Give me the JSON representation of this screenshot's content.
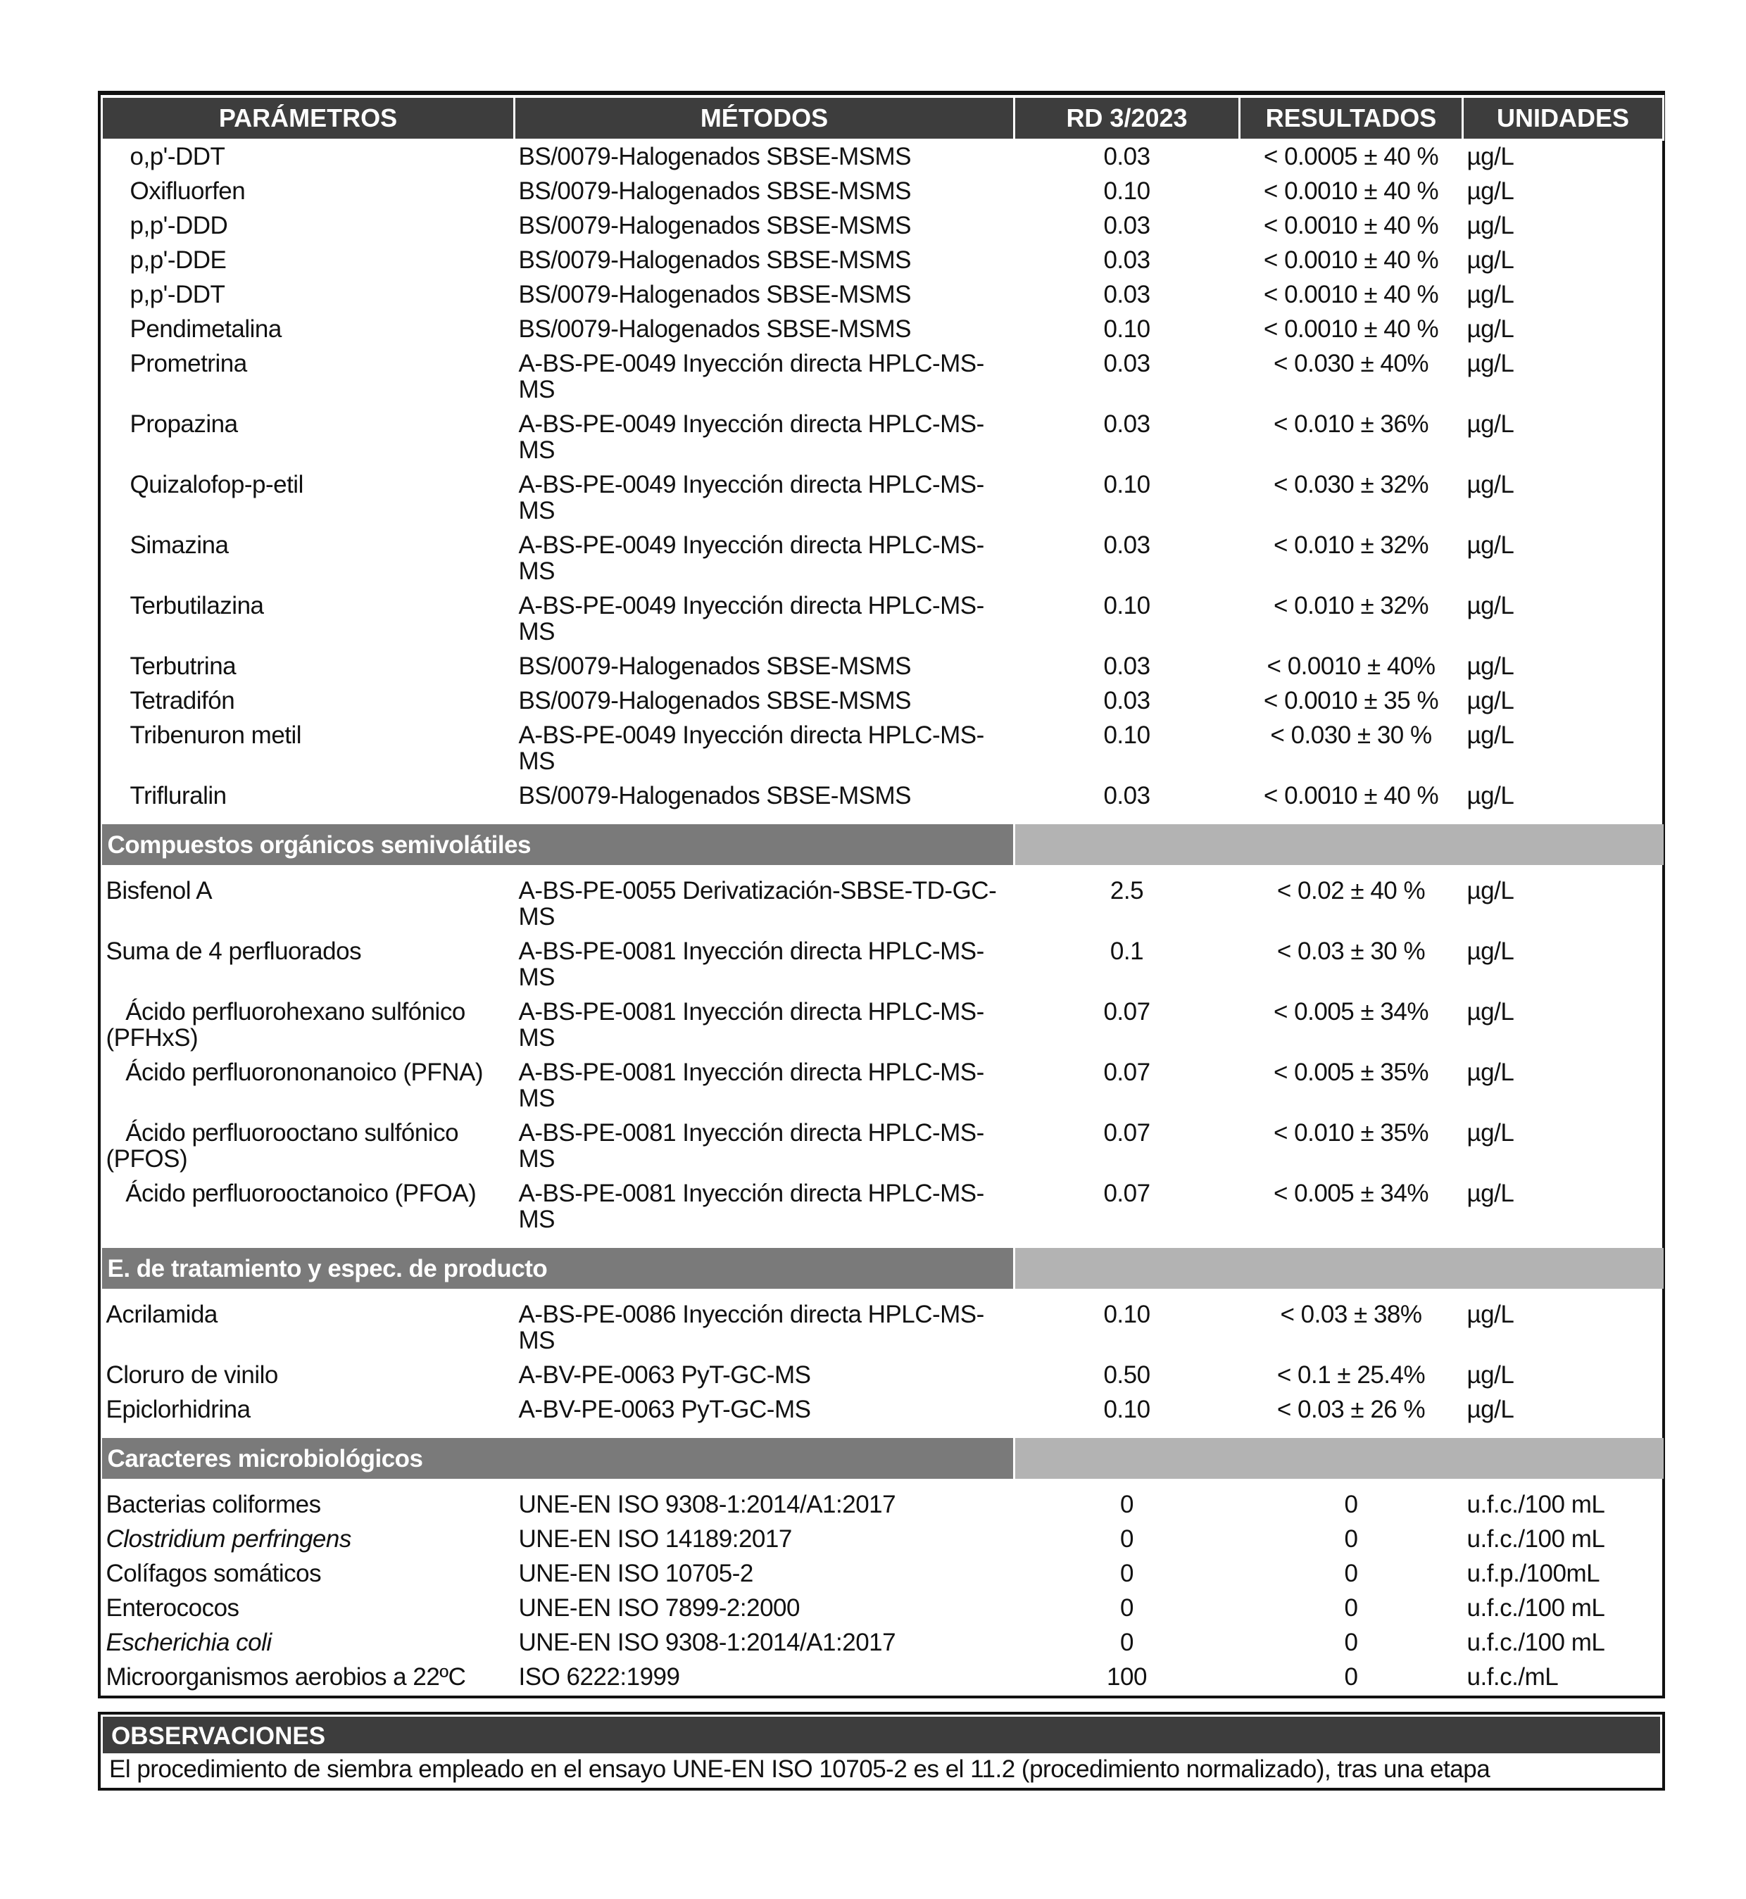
{
  "headers": [
    "PARÁMETROS",
    "MÉTODOS",
    "RD 3/2023",
    "RESULTADOS",
    "UNIDADES"
  ],
  "sections": [
    {
      "title": "",
      "rows": [
        {
          "param": "o,p'-DDT",
          "indent": true,
          "method": "BS/0079-Halogenados SBSE-MSMS",
          "rd": "0.03",
          "result": "< 0.0005 ± 40 %",
          "unit": "µg/L"
        },
        {
          "param": "Oxifluorfen",
          "indent": true,
          "method": "BS/0079-Halogenados SBSE-MSMS",
          "rd": "0.10",
          "result": "< 0.0010 ± 40 %",
          "unit": "µg/L"
        },
        {
          "param": "p,p'-DDD",
          "indent": true,
          "method": "BS/0079-Halogenados SBSE-MSMS",
          "rd": "0.03",
          "result": "< 0.0010 ± 40 %",
          "unit": "µg/L"
        },
        {
          "param": "p,p'-DDE",
          "indent": true,
          "method": "BS/0079-Halogenados SBSE-MSMS",
          "rd": "0.03",
          "result": "< 0.0010 ± 40 %",
          "unit": "µg/L"
        },
        {
          "param": "p,p'-DDT",
          "indent": true,
          "method": "BS/0079-Halogenados SBSE-MSMS",
          "rd": "0.03",
          "result": "< 0.0010 ± 40 %",
          "unit": "µg/L"
        },
        {
          "param": "Pendimetalina",
          "indent": true,
          "method": "BS/0079-Halogenados SBSE-MSMS",
          "rd": "0.10",
          "result": "< 0.0010 ± 40 %",
          "unit": "µg/L"
        },
        {
          "param": "Prometrina",
          "indent": true,
          "method": "A-BS-PE-0049 Inyección directa HPLC-MS-MS",
          "rd": "0.03",
          "result": "< 0.030 ± 40%",
          "unit": "µg/L"
        },
        {
          "param": "Propazina",
          "indent": true,
          "method": "A-BS-PE-0049 Inyección directa HPLC-MS-MS",
          "rd": "0.03",
          "result": "< 0.010 ± 36%",
          "unit": "µg/L"
        },
        {
          "param": "Quizalofop-p-etil",
          "indent": true,
          "method": "A-BS-PE-0049 Inyección directa HPLC-MS-MS",
          "rd": "0.10",
          "result": "< 0.030 ± 32%",
          "unit": "µg/L"
        },
        {
          "param": "Simazina",
          "indent": true,
          "method": "A-BS-PE-0049 Inyección directa HPLC-MS-MS",
          "rd": "0.03",
          "result": "< 0.010 ± 32%",
          "unit": "µg/L"
        },
        {
          "param": "Terbutilazina",
          "indent": true,
          "method": "A-BS-PE-0049 Inyección directa HPLC-MS-MS",
          "rd": "0.10",
          "result": "< 0.010 ± 32%",
          "unit": "µg/L"
        },
        {
          "param": "Terbutrina",
          "indent": true,
          "method": "BS/0079-Halogenados SBSE-MSMS",
          "rd": "0.03",
          "result": "< 0.0010 ± 40%",
          "unit": "µg/L"
        },
        {
          "param": "Tetradifón",
          "indent": true,
          "method": "BS/0079-Halogenados SBSE-MSMS",
          "rd": "0.03",
          "result": "< 0.0010 ± 35 %",
          "unit": "µg/L"
        },
        {
          "param": "Tribenuron metil",
          "indent": true,
          "method": "A-BS-PE-0049 Inyección directa HPLC-MS-MS",
          "rd": "0.10",
          "result": "< 0.030 ± 30 %",
          "unit": "µg/L"
        },
        {
          "param": "Trifluralin",
          "indent": true,
          "method": "BS/0079-Halogenados SBSE-MSMS",
          "rd": "0.03",
          "result": "< 0.0010 ± 40 %",
          "unit": "µg/L"
        }
      ]
    },
    {
      "title": "Compuestos orgánicos semivolátiles",
      "rows": [
        {
          "param": "Bisfenol A",
          "method": "A-BS-PE-0055 Derivatización-SBSE-TD-GC-MS",
          "rd": "2.5",
          "result": "< 0.02 ± 40 %",
          "unit": "µg/L"
        },
        {
          "param": "Suma de 4 perfluorados",
          "method": "A-BS-PE-0081 Inyección directa HPLC-MS-MS",
          "rd": "0.1",
          "result": "< 0.03 ± 30 %",
          "unit": "µg/L"
        },
        {
          "param": "   Ácido perfluorohexano sulfónico (PFHxS)",
          "method": "A-BS-PE-0081 Inyección directa HPLC-MS-MS",
          "rd": "0.07",
          "result": "< 0.005 ± 34%",
          "unit": "µg/L"
        },
        {
          "param": "   Ácido perfluorononanoico (PFNA)",
          "method": "A-BS-PE-0081 Inyección directa HPLC-MS-MS",
          "rd": "0.07",
          "result": "< 0.005 ± 35%",
          "unit": "µg/L"
        },
        {
          "param": "   Ácido perfluorooctano sulfónico (PFOS)",
          "method": "A-BS-PE-0081 Inyección directa HPLC-MS-MS",
          "rd": "0.07",
          "result": "< 0.010 ± 35%",
          "unit": "µg/L"
        },
        {
          "param": "   Ácido perfluorooctanoico (PFOA)",
          "method": "A-BS-PE-0081 Inyección directa HPLC-MS-MS",
          "rd": "0.07",
          "result": "< 0.005 ± 34%",
          "unit": "µg/L"
        }
      ]
    },
    {
      "title": "E. de tratamiento y espec. de producto",
      "rows": [
        {
          "param": "Acrilamida",
          "method": "A-BS-PE-0086 Inyección directa HPLC-MS-MS",
          "rd": "0.10",
          "result": "< 0.03 ± 38%",
          "unit": "µg/L"
        },
        {
          "param": "Cloruro de vinilo",
          "method": "A-BV-PE-0063 PyT-GC-MS",
          "rd": "0.50",
          "result": "< 0.1 ± 25.4%",
          "unit": "µg/L"
        },
        {
          "param": "Epiclorhidrina",
          "method": "A-BV-PE-0063 PyT-GC-MS",
          "rd": "0.10",
          "result": "< 0.03 ± 26 %",
          "unit": "µg/L"
        }
      ]
    },
    {
      "title": "Caracteres microbiológicos",
      "rows": [
        {
          "param": "Bacterias coliformes",
          "method": "UNE-EN ISO 9308-1:2014/A1:2017",
          "rd": "0",
          "result": "0",
          "unit": "u.f.c./100 mL"
        },
        {
          "param": "Clostridium perfringens",
          "italic": true,
          "method": "UNE-EN ISO 14189:2017",
          "rd": "0",
          "result": "0",
          "unit": "u.f.c./100 mL"
        },
        {
          "param": "Colífagos somáticos",
          "method": "UNE-EN ISO 10705-2",
          "rd": "0",
          "result": "0",
          "unit": "u.f.p./100mL"
        },
        {
          "param": "Enterococos",
          "method": "UNE-EN ISO 7899-2:2000",
          "rd": "0",
          "result": "0",
          "unit": "u.f.c./100 mL"
        },
        {
          "param": "Escherichia coli",
          "italic": true,
          "method": "UNE-EN ISO 9308-1:2014/A1:2017",
          "rd": "0",
          "result": "0",
          "unit": "u.f.c./100 mL"
        },
        {
          "param": "Microorganismos aerobios a 22ºC",
          "method": "ISO 6222:1999",
          "rd": "100",
          "result": "0",
          "unit": "u.f.c./mL"
        }
      ]
    }
  ],
  "observations": {
    "title": "OBSERVACIONES",
    "text": "El procedimiento de siembra empleado en el ensayo UNE-EN ISO 10705-2 es el 11.2 (procedimiento normalizado), tras una etapa"
  }
}
